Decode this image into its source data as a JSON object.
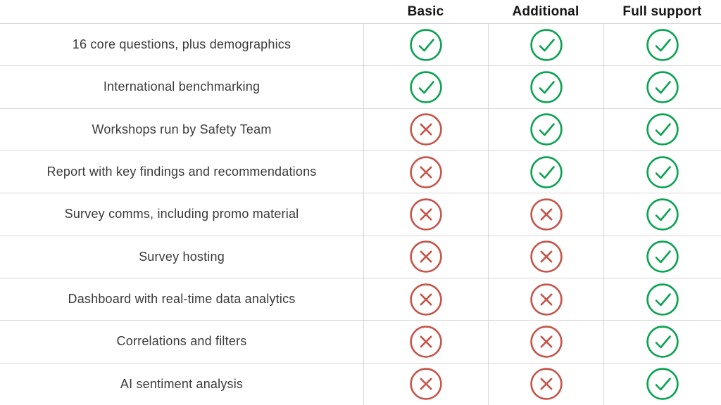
{
  "table": {
    "columns": [
      {
        "label": "Basic"
      },
      {
        "label": "Additional"
      },
      {
        "label": "Full support"
      }
    ],
    "rows": [
      {
        "label": "16 core questions, plus demographics",
        "values": [
          "check",
          "check",
          "check"
        ]
      },
      {
        "label": "International benchmarking",
        "values": [
          "check",
          "check",
          "check"
        ]
      },
      {
        "label": "Workshops run by Safety Team",
        "values": [
          "cross",
          "check",
          "check"
        ]
      },
      {
        "label": "Report with key findings and recommendations",
        "values": [
          "cross",
          "check",
          "check"
        ]
      },
      {
        "label": "Survey comms, including promo material",
        "values": [
          "cross",
          "cross",
          "check"
        ]
      },
      {
        "label": "Survey hosting",
        "values": [
          "cross",
          "cross",
          "check"
        ]
      },
      {
        "label": "Dashboard with real-time data analytics",
        "values": [
          "cross",
          "cross",
          "check"
        ]
      },
      {
        "label": "Correlations and filters",
        "values": [
          "cross",
          "cross",
          "check"
        ]
      },
      {
        "label": "AI sentiment analysis",
        "values": [
          "cross",
          "cross",
          "check"
        ]
      }
    ]
  },
  "colors": {
    "check_green": "#0AA351",
    "cross_red": "#C4564B",
    "grid_line": "#D6D6D6",
    "header_text": "#141414",
    "label_text": "#3A3A3A",
    "background": "#FFFFFF"
  },
  "icons": {
    "check": "check-circle-icon",
    "cross": "cross-circle-icon"
  }
}
